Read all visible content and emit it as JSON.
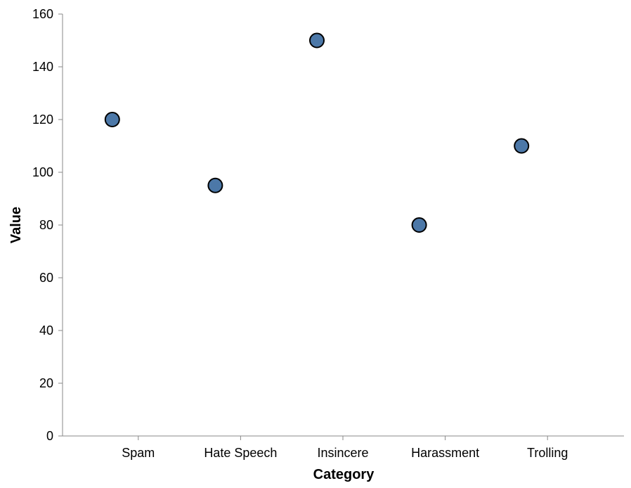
{
  "chart_data": {
    "type": "scatter",
    "categories": [
      "Spam",
      "Hate Speech",
      "Insincere",
      "Harassment",
      "Trolling"
    ],
    "values": [
      120,
      95,
      150,
      80,
      110
    ],
    "xlabel": "Category",
    "ylabel": "Value",
    "ylim": [
      0,
      160
    ],
    "yticks": [
      0,
      20,
      40,
      60,
      80,
      100,
      120,
      140,
      160
    ],
    "grid": false,
    "point_color": "#4c78a8",
    "point_stroke": "#000000",
    "axis_color": "#888888"
  }
}
